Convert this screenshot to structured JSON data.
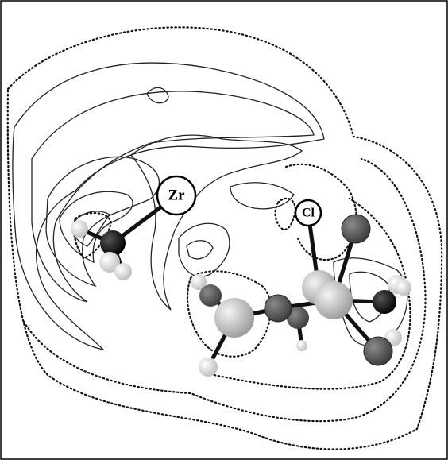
{
  "atoms": [
    {
      "label": "Zr"
    },
    {
      "label": "Cl"
    }
  ]
}
